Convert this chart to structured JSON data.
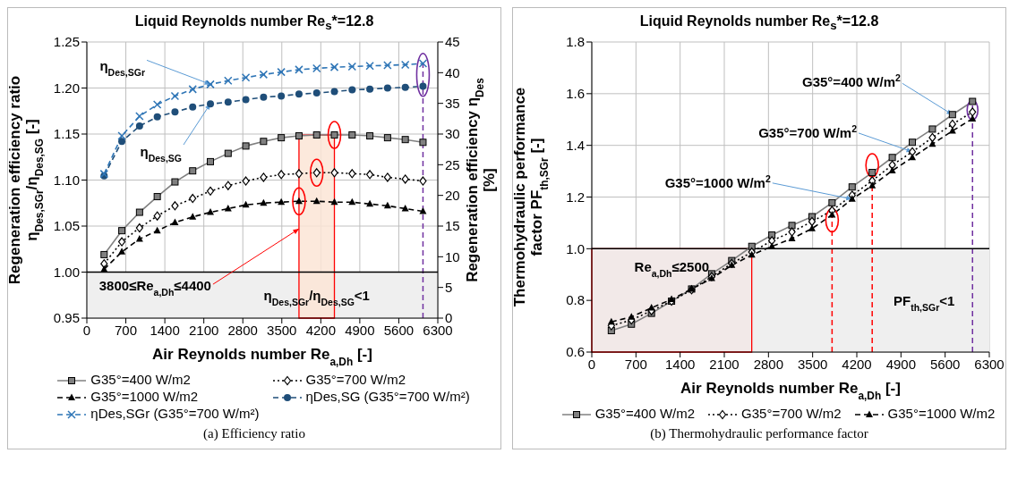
{
  "chart_data": [
    {
      "type": "line",
      "title": "Liquid Reynolds number Re$_{s}$*=12.8",
      "xlabel": "Air Reynolds number Re$_{a,Dh}$ [-]",
      "ylabel": "Regeneration efficiency ratio η$_{Des,SGr}$/η$_{Des,SG}$ [-]",
      "y2label": "Regeneration efficiency η$_{Des}$ [%]",
      "x": [
        310,
        628,
        946,
        1264,
        1582,
        1900,
        2218,
        2536,
        2854,
        3172,
        3490,
        3808,
        4126,
        4444,
        4762,
        5080,
        5398,
        5716,
        6034
      ],
      "series": [
        {
          "name": "G35°=400 W/m2",
          "color": "#808080",
          "marker": "square",
          "line_style": "solid",
          "values": [
            1.019,
            1.045,
            1.065,
            1.082,
            1.098,
            1.11,
            1.12,
            1.129,
            1.137,
            1.142,
            1.146,
            1.148,
            1.149,
            1.149,
            1.149,
            1.148,
            1.146,
            1.144,
            1.141
          ]
        },
        {
          "name": "G35°=700 W/m2",
          "color": "#000000",
          "marker": "diamond",
          "line_style": "dotted",
          "values": [
            1.009,
            1.033,
            1.048,
            1.061,
            1.072,
            1.08,
            1.088,
            1.094,
            1.099,
            1.103,
            1.106,
            1.107,
            1.108,
            1.108,
            1.107,
            1.106,
            1.103,
            1.101,
            1.099
          ]
        },
        {
          "name": "G35°=1000 W/m2",
          "color": "#000000",
          "marker": "triangle",
          "line_style": "dashed",
          "values": [
            1.003,
            1.022,
            1.036,
            1.045,
            1.054,
            1.06,
            1.065,
            1.069,
            1.073,
            1.075,
            1.076,
            1.077,
            1.077,
            1.076,
            1.076,
            1.074,
            1.072,
            1.069,
            1.066
          ]
        },
        {
          "name": "ηDes,SG (G35°=700 W/m²)",
          "color": "#1f4e79",
          "marker": "circle",
          "line_style": "dashed",
          "axis": "y2",
          "values": [
            23.2,
            28.8,
            31.3,
            32.8,
            33.6,
            34.4,
            34.9,
            35.2,
            35.6,
            36.0,
            36.2,
            36.5,
            36.7,
            36.9,
            37.2,
            37.3,
            37.5,
            37.6,
            37.8
          ]
        },
        {
          "name": "ηDes,SGr (G35°=700 W/m²)",
          "color": "#2e75b6",
          "marker": "cross",
          "line_style": "dashed",
          "axis": "y2",
          "values": [
            23.5,
            29.7,
            32.9,
            34.8,
            36.2,
            37.3,
            38.1,
            38.7,
            39.2,
            39.7,
            40.1,
            40.5,
            40.7,
            40.9,
            41.0,
            41.1,
            41.2,
            41.3,
            41.5
          ]
        }
      ],
      "xlim": [
        0,
        6300
      ],
      "xticks": [
        0,
        700,
        1400,
        2100,
        2800,
        3500,
        4200,
        4900,
        5600,
        6300
      ],
      "ylim": [
        0.95,
        1.25
      ],
      "yticks": [
        {
          "value": 0.95,
          "label": "0.95"
        },
        {
          "value": 1.0,
          "label": "1.00"
        },
        {
          "value": 1.05,
          "label": "1.05"
        },
        {
          "value": 1.1,
          "label": "1.10"
        },
        {
          "value": 1.15,
          "label": "1.15"
        },
        {
          "value": 1.2,
          "label": "1.20"
        },
        {
          "value": 1.25,
          "label": "1.25"
        }
      ],
      "y2lim": [
        0,
        45
      ],
      "y2ticks": [
        0,
        5,
        10,
        15,
        20,
        25,
        30,
        35,
        40,
        45
      ],
      "grid": true,
      "legend": "bottom",
      "bands": [
        {
          "axis": "y",
          "from": 0.95,
          "to": 1.0,
          "label": "η$_{Des,SGr}$/η$_{Des,SG}$<1",
          "color": "#efefef"
        },
        {
          "axis": "x",
          "from": 3808,
          "to": 4444,
          "color": "#fbe5d6"
        }
      ],
      "ref_lines": [
        {
          "axis": "x",
          "value": 6034,
          "color": "#7030a0",
          "line_style": "dashed"
        },
        {
          "axis": "y",
          "value": 1.0,
          "color": "#000000",
          "line_style": "solid"
        }
      ],
      "annotations": [
        {
          "text": "η$_{Des,SGr}$",
          "x": 2218,
          "y": 1.204
        },
        {
          "text": "η$_{Des,SG}$",
          "x": 2218,
          "y": 1.183
        },
        {
          "text": "3800≤Re$_{a,Dh}$≤4400",
          "x": 3808,
          "y": 1.047
        },
        "(a) Efficiency ratio"
      ]
    },
    {
      "type": "line",
      "title": "Liquid Reynolds number Re$_{s}$*=12.8",
      "xlabel": "Air Reynolds number Re$_{a,Dh}$ [-]",
      "ylabel": "Thermohydraulic performance factor PF$_{th,SGr}$ [-]",
      "x": [
        310,
        628,
        946,
        1264,
        1582,
        1900,
        2218,
        2536,
        2854,
        3172,
        3490,
        3808,
        4126,
        4444,
        4762,
        5080,
        5398,
        5716,
        6034
      ],
      "series": [
        {
          "name": "G35°=400 W/m2",
          "color": "#808080",
          "marker": "square",
          "line_style": "solid",
          "values": [
            0.683,
            0.708,
            0.75,
            0.797,
            0.844,
            0.903,
            0.954,
            1.009,
            1.053,
            1.09,
            1.124,
            1.178,
            1.239,
            1.295,
            1.353,
            1.412,
            1.463,
            1.519,
            1.57
          ]
        },
        {
          "name": "G35°=700 W/m2",
          "color": "#000000",
          "marker": "diamond",
          "line_style": "dotted",
          "values": [
            0.702,
            0.724,
            0.76,
            0.797,
            0.841,
            0.892,
            0.943,
            0.987,
            1.031,
            1.065,
            1.105,
            1.148,
            1.207,
            1.263,
            1.324,
            1.375,
            1.43,
            1.482,
            1.529
          ]
        },
        {
          "name": "G35°=1000 W/m2",
          "color": "#000000",
          "marker": "triangle",
          "line_style": "dashed",
          "values": [
            0.717,
            0.736,
            0.771,
            0.804,
            0.844,
            0.885,
            0.936,
            0.976,
            1.009,
            1.039,
            1.078,
            1.131,
            1.192,
            1.244,
            1.302,
            1.353,
            1.405,
            1.456,
            1.503
          ]
        }
      ],
      "xlim": [
        0,
        6300
      ],
      "xticks": [
        0,
        700,
        1400,
        2100,
        2800,
        3500,
        4200,
        4900,
        5600,
        6300
      ],
      "ylim": [
        0.6,
        1.8
      ],
      "yticks": [
        0.6,
        0.8,
        {
          "value": 1.0,
          "label": "1.0"
        },
        1.2,
        1.4,
        1.6,
        1.8
      ],
      "grid": true,
      "legend": "bottom",
      "bands": [
        {
          "axis": "y",
          "from": 0.6,
          "to": 1.0,
          "label": "PF$_{th,SGr}$<1",
          "color": "#efefef"
        },
        {
          "axis": "x",
          "from": 0,
          "to": 2535,
          "label": "Re$_{a,Dh}$≤2500",
          "color": "#f2e8e6"
        }
      ],
      "ref_lines": [
        {
          "axis": "x",
          "value": 3808,
          "color": "#ff0000",
          "line_style": "dashed"
        },
        {
          "axis": "x",
          "value": 4444,
          "color": "#ff0000",
          "line_style": "dashed"
        },
        {
          "axis": "x",
          "value": 6034,
          "color": "#7030a0",
          "line_style": "dashed"
        },
        {
          "axis": "y",
          "value": 1.0,
          "color": "#000000",
          "line_style": "solid"
        }
      ],
      "annotations": [
        {
          "text": "G35°=400 W/m$^{2}$",
          "x": 5716,
          "y": 1.519
        },
        {
          "text": "G35°=700 W/m$^{2}$",
          "x": 5080,
          "y": 1.375
        },
        {
          "text": "G35°=1000 W/m$^{2}$",
          "x": 4126,
          "y": 1.192
        },
        "(b) Thermohydraulic performance factor"
      ]
    }
  ]
}
